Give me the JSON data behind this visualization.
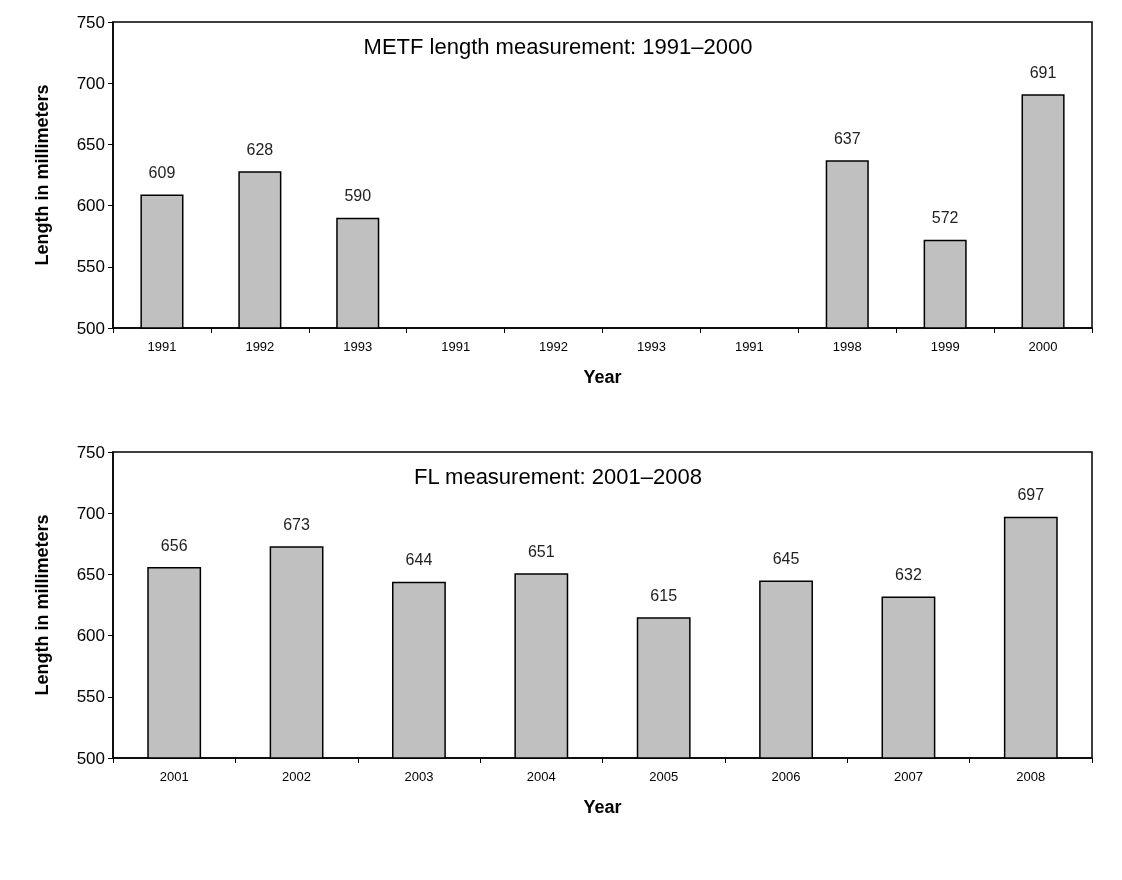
{
  "chart_data": [
    {
      "type": "bar",
      "title": "METF length measurement: 1991–2000",
      "xlabel": "Year",
      "ylabel": "Length in millimeters",
      "categories": [
        "1991",
        "1992",
        "1993",
        "1991",
        "1992",
        "1993",
        "1991",
        "1998",
        "1999",
        "2000"
      ],
      "values": [
        609,
        628,
        590,
        null,
        null,
        null,
        null,
        637,
        572,
        691
      ],
      "color": "#c0c0c0",
      "ylim": [
        500,
        750
      ],
      "yticks": [
        500,
        550,
        600,
        650,
        700,
        750
      ],
      "data_labels": true
    },
    {
      "type": "bar",
      "title": "FL measurement: 2001–2008",
      "xlabel": "Year",
      "ylabel": "Length in millimeters",
      "categories": [
        "2001",
        "2002",
        "2003",
        "2004",
        "2005",
        "2006",
        "2007",
        "2008"
      ],
      "values": [
        656,
        673,
        644,
        651,
        615,
        645,
        632,
        697
      ],
      "color": "#c0c0c0",
      "ylim": [
        500,
        750
      ],
      "yticks": [
        500,
        550,
        600,
        650,
        700,
        750
      ],
      "data_labels": true
    }
  ]
}
